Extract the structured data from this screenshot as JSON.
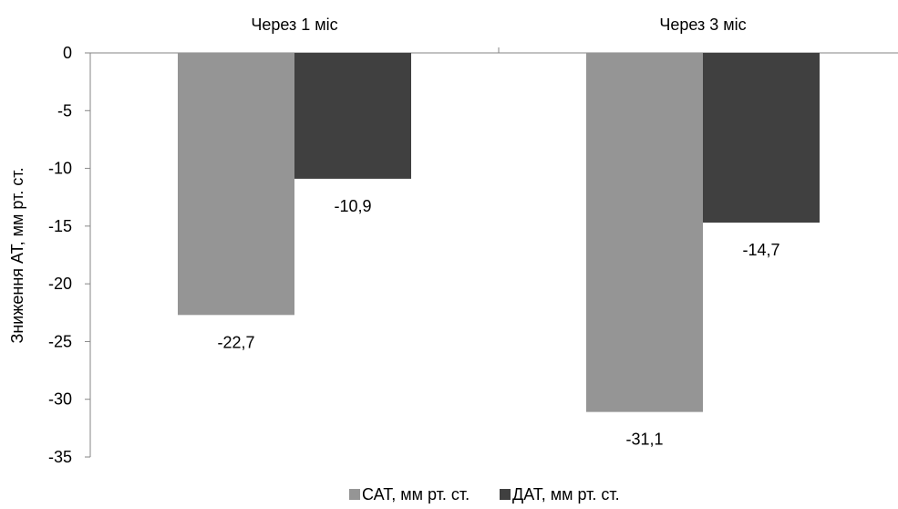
{
  "chart_data": {
    "type": "bar",
    "categories": [
      "Через 1 міс",
      "Через 3 міс"
    ],
    "series": [
      {
        "name": "САТ, мм рт. ст.",
        "values": [
          -22.7,
          -31.1
        ],
        "labels": [
          "-22,7",
          "-31,1"
        ],
        "color": "#959595"
      },
      {
        "name": "ДАТ, мм рт. ст.",
        "values": [
          -10.9,
          -14.7
        ],
        "labels": [
          "-10,9",
          "-14,7"
        ],
        "color": "#404040"
      }
    ],
    "title": "",
    "xlabel": "",
    "ylabel": "Зниження АТ, мм рт. ст.",
    "ylim": [
      -35,
      0
    ],
    "yticks": [
      0,
      -5,
      -10,
      -15,
      -20,
      -25,
      -30,
      -35
    ],
    "ytick_labels": [
      "0",
      "-5",
      "-10",
      "-15",
      "-20",
      "-25",
      "-30",
      "-35"
    ],
    "category_axis_position": "top",
    "grid": false,
    "legend_position": "bottom"
  }
}
